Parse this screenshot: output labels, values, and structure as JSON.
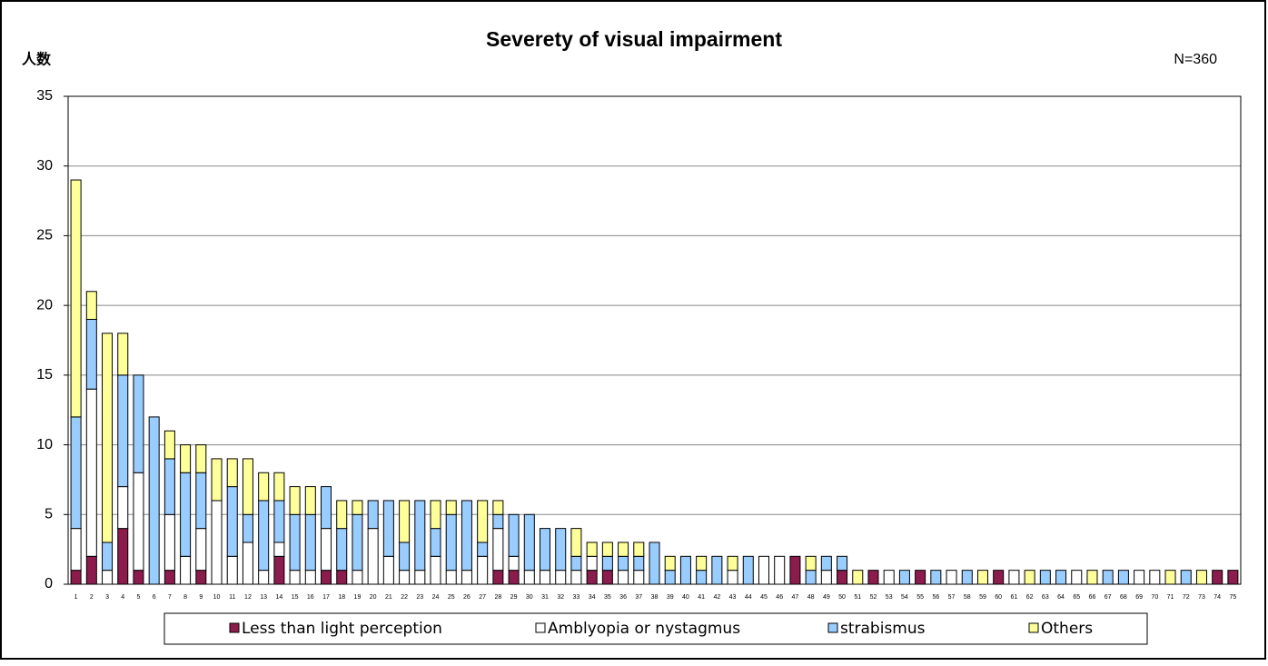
{
  "chart_data": {
    "type": "stacked_bar",
    "title": "Severety of visual impairment",
    "y_label": "人数",
    "annotation": "N=360",
    "categories": [
      1,
      2,
      3,
      4,
      5,
      6,
      7,
      8,
      9,
      10,
      11,
      12,
      13,
      14,
      15,
      16,
      17,
      18,
      19,
      20,
      21,
      22,
      23,
      24,
      25,
      26,
      27,
      28,
      29,
      30,
      31,
      32,
      33,
      34,
      35,
      36,
      37,
      38,
      39,
      40,
      41,
      42,
      43,
      44,
      45,
      46,
      47,
      48,
      49,
      50,
      51,
      52,
      53,
      54,
      55,
      56,
      57,
      58,
      59,
      60,
      61,
      62,
      63,
      64,
      65,
      66,
      67,
      68,
      69,
      70,
      71,
      72,
      73,
      74,
      75
    ],
    "series": [
      {
        "name": "Less than light perception",
        "color": "#8b1c4c",
        "values": [
          1,
          2,
          0,
          4,
          1,
          0,
          1,
          0,
          1,
          0,
          0,
          0,
          0,
          2,
          0,
          0,
          1,
          1,
          0,
          0,
          0,
          0,
          0,
          0,
          0,
          0,
          0,
          1,
          1,
          0,
          0,
          0,
          0,
          1,
          1,
          0,
          0,
          0,
          0,
          0,
          0,
          0,
          0,
          0,
          0,
          0,
          2,
          0,
          0,
          1,
          0,
          1,
          0,
          0,
          1,
          0,
          0,
          0,
          0,
          1,
          0,
          0,
          0,
          0,
          0,
          0,
          0,
          0,
          0,
          0,
          0,
          0,
          0,
          1,
          1
        ]
      },
      {
        "name": "Amblyopia or nystagmus",
        "color": "#ffffff",
        "values": [
          3,
          12,
          1,
          3,
          7,
          0,
          4,
          2,
          3,
          6,
          2,
          3,
          1,
          1,
          1,
          1,
          3,
          0,
          1,
          4,
          2,
          1,
          1,
          2,
          1,
          1,
          2,
          3,
          1,
          1,
          1,
          1,
          1,
          1,
          0,
          1,
          1,
          0,
          0,
          0,
          0,
          0,
          1,
          0,
          2,
          2,
          0,
          0,
          1,
          0,
          0,
          0,
          1,
          0,
          0,
          0,
          1,
          0,
          0,
          0,
          1,
          0,
          0,
          0,
          1,
          0,
          0,
          0,
          1,
          1,
          0,
          0,
          0,
          0,
          0
        ]
      },
      {
        "name": "strabismus",
        "color": "#99ccff",
        "values": [
          8,
          5,
          2,
          8,
          7,
          12,
          4,
          6,
          4,
          0,
          5,
          2,
          5,
          3,
          4,
          4,
          3,
          3,
          4,
          2,
          4,
          2,
          5,
          2,
          4,
          5,
          1,
          1,
          3,
          4,
          3,
          3,
          1,
          0,
          1,
          1,
          1,
          3,
          1,
          2,
          1,
          2,
          0,
          2,
          0,
          0,
          0,
          1,
          1,
          1,
          0,
          0,
          0,
          1,
          0,
          1,
          0,
          1,
          0,
          0,
          0,
          0,
          1,
          1,
          0,
          0,
          1,
          1,
          0,
          0,
          0,
          1,
          0,
          0,
          0
        ]
      },
      {
        "name": "Others",
        "color": "#ffff99",
        "values": [
          17,
          2,
          15,
          3,
          0,
          0,
          2,
          2,
          2,
          3,
          2,
          4,
          2,
          2,
          2,
          2,
          0,
          2,
          1,
          0,
          0,
          3,
          0,
          2,
          1,
          0,
          3,
          1,
          0,
          0,
          0,
          0,
          2,
          1,
          1,
          1,
          1,
          0,
          1,
          0,
          1,
          0,
          1,
          0,
          0,
          0,
          0,
          1,
          0,
          0,
          1,
          0,
          0,
          0,
          0,
          0,
          0,
          0,
          1,
          0,
          0,
          1,
          0,
          0,
          0,
          1,
          0,
          0,
          0,
          0,
          1,
          0,
          1,
          0,
          0
        ]
      }
    ],
    "ylim": [
      0,
      35
    ],
    "yticks": [
      0,
      5,
      10,
      15,
      20,
      25,
      30,
      35
    ],
    "grid": true,
    "legend": "bottom"
  }
}
